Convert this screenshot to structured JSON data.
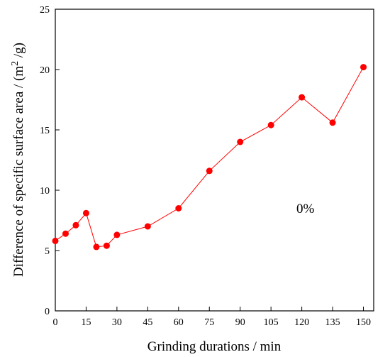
{
  "chart_data": {
    "type": "line",
    "xlabel": "Grinding durations / min",
    "ylabel_main": "Difference of specific surface area / (m",
    "ylabel_sup": "2",
    "ylabel_tail": " /g)",
    "xlim": [
      0,
      155
    ],
    "ylim": [
      0,
      25
    ],
    "xticks": [
      0,
      15,
      30,
      45,
      60,
      75,
      90,
      105,
      120,
      135,
      150
    ],
    "yticks": [
      0,
      5,
      10,
      15,
      20,
      25
    ],
    "grid": false,
    "annotation": "0%",
    "series": [
      {
        "color": "#ff0000",
        "marker": "circle",
        "x": [
          0,
          5,
          10,
          15,
          20,
          25,
          30,
          45,
          60,
          75,
          90,
          105,
          120,
          135,
          150
        ],
        "y": [
          5.8,
          6.4,
          7.1,
          8.1,
          5.3,
          5.4,
          6.3,
          7.0,
          8.5,
          11.6,
          14.0,
          15.4,
          17.7,
          15.6,
          20.2
        ]
      }
    ]
  }
}
